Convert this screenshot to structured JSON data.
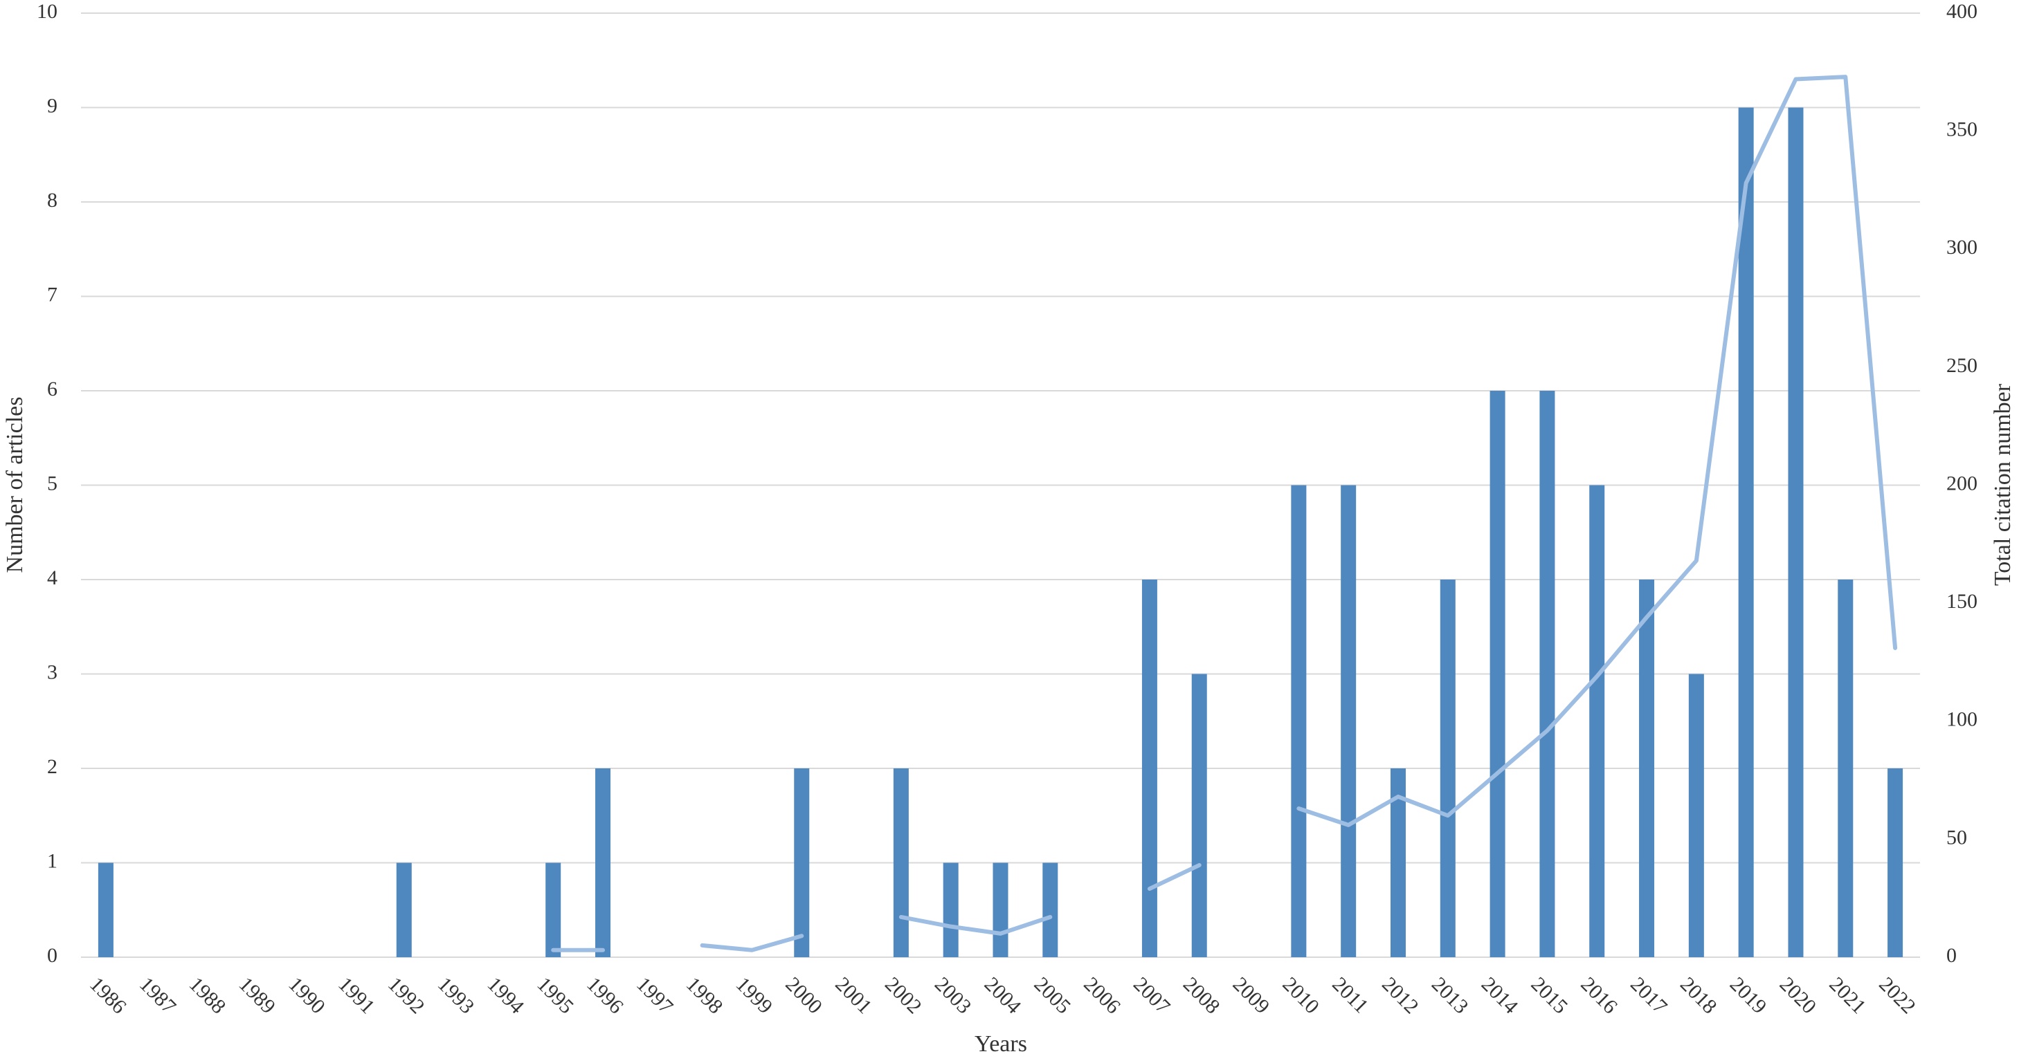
{
  "chart_data": {
    "type": "bar",
    "x_label": "Years",
    "y_label": "Number of articles",
    "y2_label": "Total citation number",
    "categories": [
      "1986",
      "1987",
      "1988",
      "1989",
      "1990",
      "1991",
      "1992",
      "1993",
      "1994",
      "1995",
      "1996",
      "1997",
      "1998",
      "1999",
      "2000",
      "2001",
      "2002",
      "2003",
      "2004",
      "2005",
      "2006",
      "2007",
      "2008",
      "2009",
      "2010",
      "2011",
      "2012",
      "2013",
      "2014",
      "2015",
      "2016",
      "2017",
      "2018",
      "2019",
      "2020",
      "2021",
      "2022"
    ],
    "series": [
      {
        "type": "bar",
        "color": "#4f87bf",
        "values": [
          1,
          0,
          0,
          0,
          0,
          0,
          1,
          0,
          0,
          1,
          2,
          0,
          0,
          0,
          2,
          0,
          2,
          1,
          1,
          1,
          0,
          4,
          3,
          0,
          5,
          5,
          2,
          4,
          6,
          6,
          5,
          4,
          3,
          9,
          9,
          4,
          2
        ]
      },
      {
        "type": "line",
        "axis": "y2",
        "color": "#9dbde3",
        "values": [
          null,
          null,
          null,
          null,
          null,
          null,
          null,
          null,
          null,
          3,
          3,
          null,
          5,
          3,
          9,
          null,
          17,
          13,
          10,
          17,
          null,
          29,
          39,
          null,
          63,
          56,
          68,
          60,
          78,
          96,
          119,
          144,
          168,
          328,
          372,
          373,
          131
        ]
      }
    ],
    "ylim": [
      0,
      10
    ],
    "yticks": [
      0,
      1,
      2,
      3,
      4,
      5,
      6,
      7,
      8,
      9,
      10
    ],
    "y2lim": [
      0,
      400
    ],
    "y2ticks": [
      0,
      50,
      100,
      150,
      200,
      250,
      300,
      350,
      400
    ],
    "grid": true
  }
}
